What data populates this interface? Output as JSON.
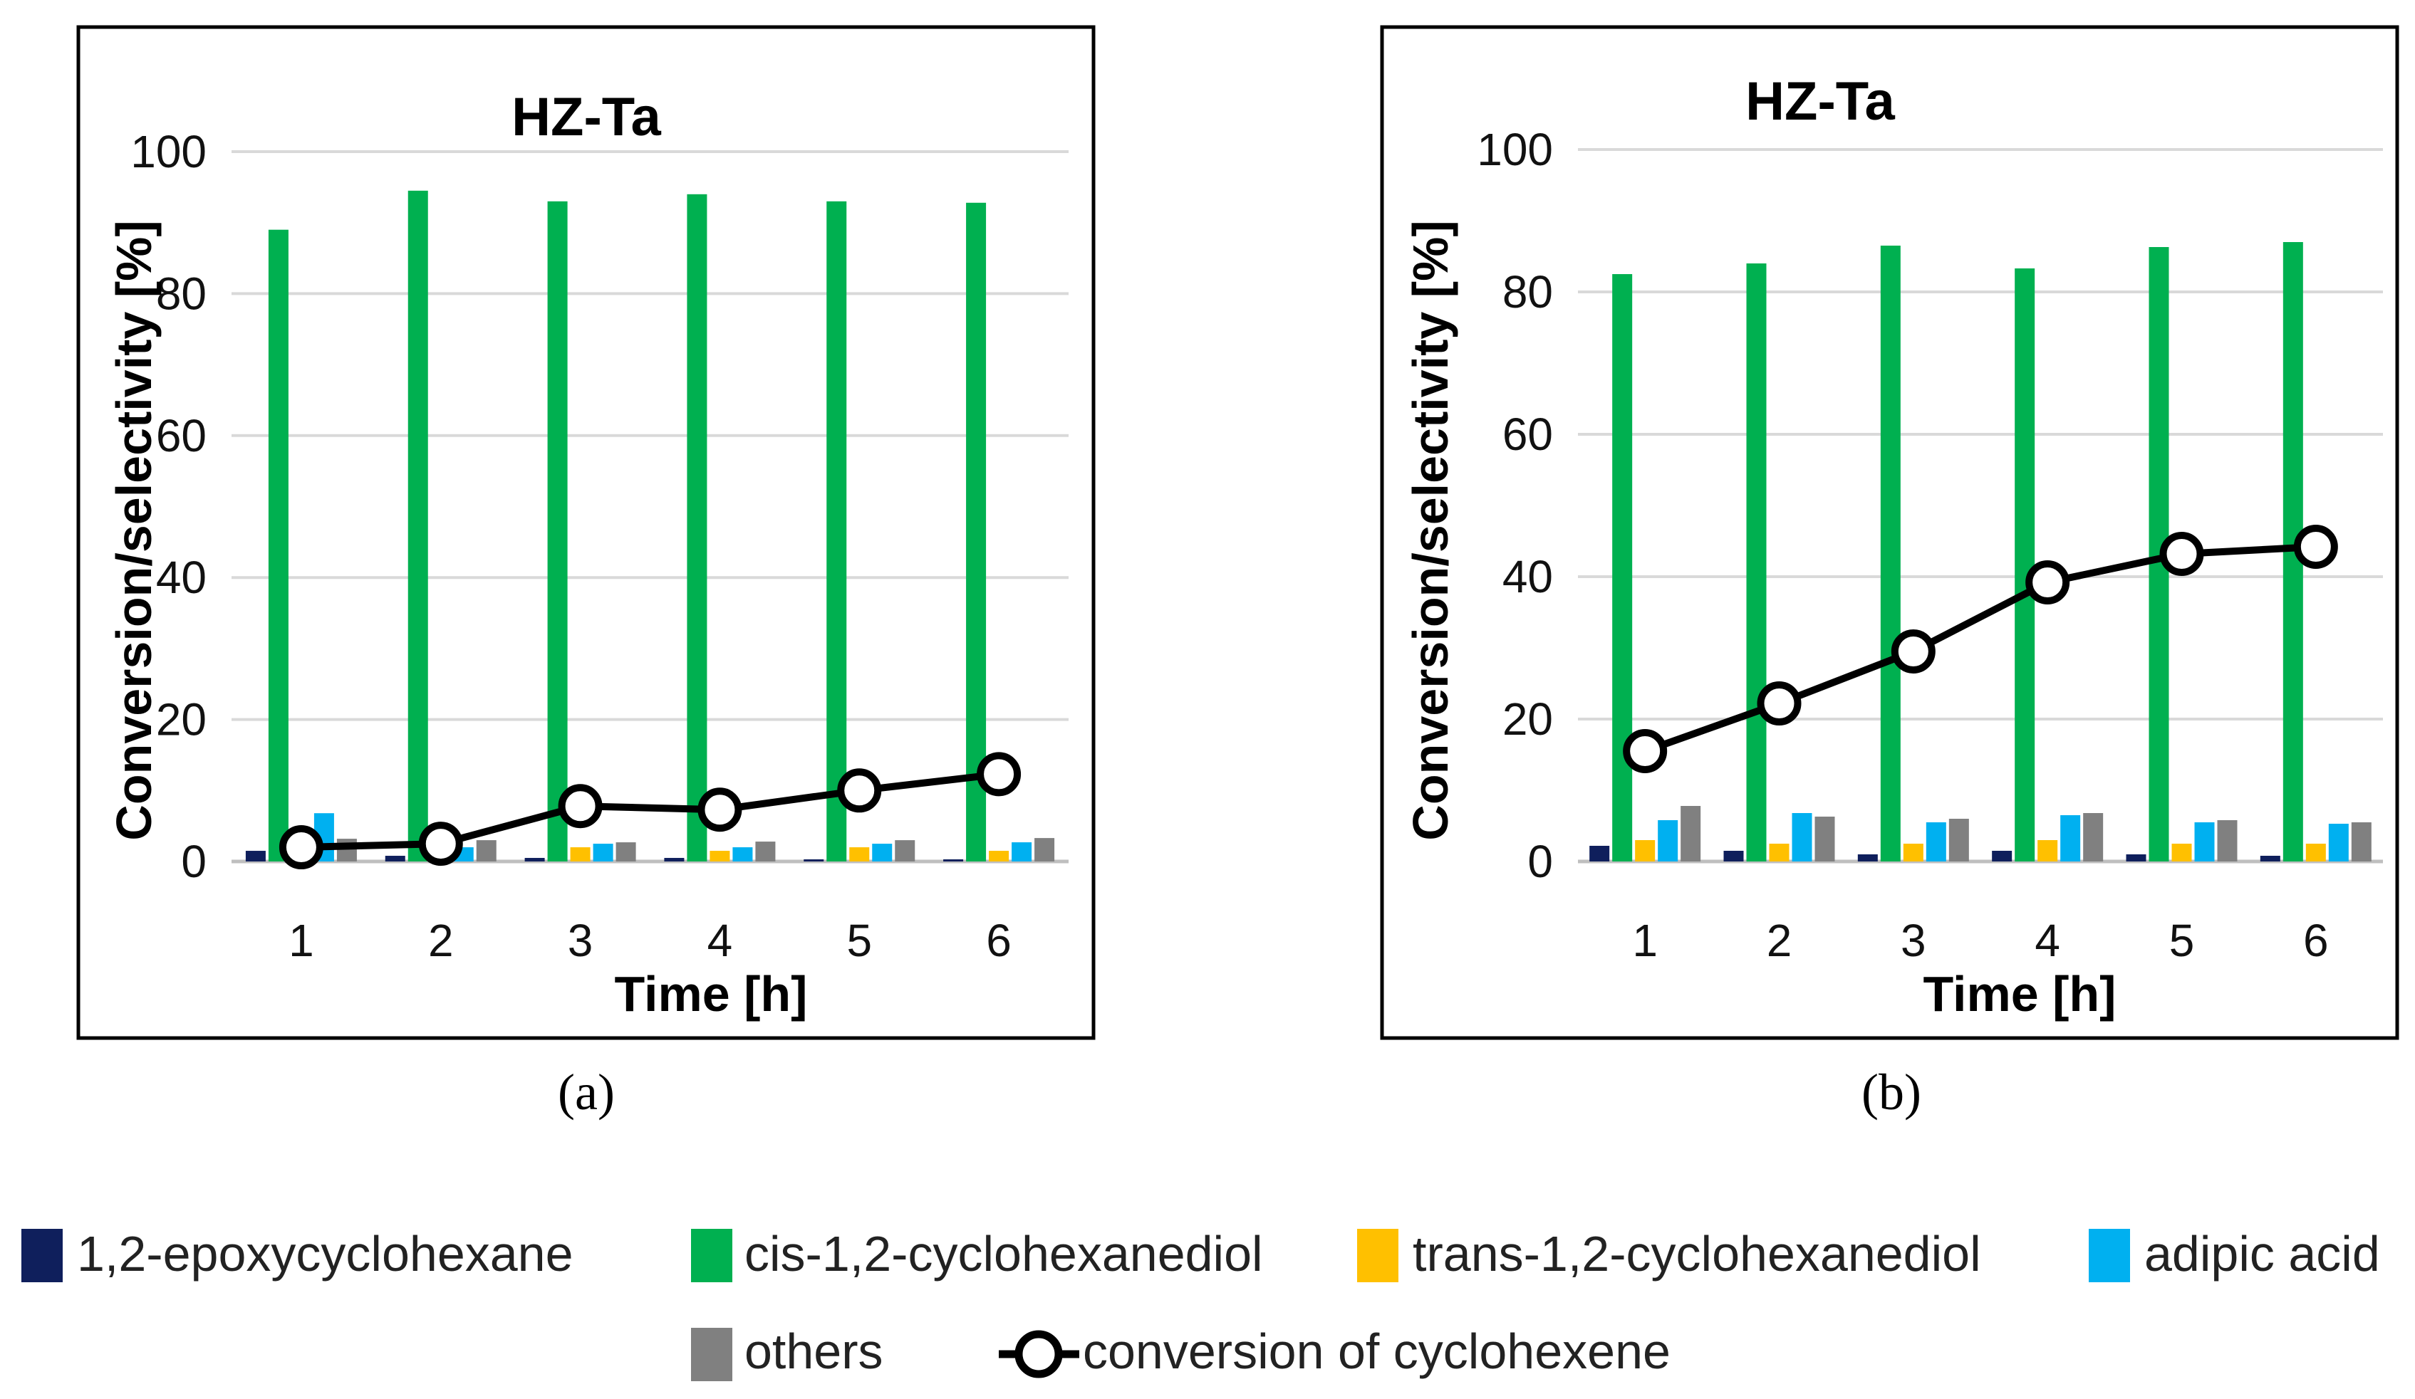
{
  "legend": {
    "items": [
      {
        "label": "1,2-epoxycyclohexane",
        "color": "#0f1f5c",
        "kind": "bar"
      },
      {
        "label": "cis-1,2-cyclohexanediol",
        "color": "#00b050",
        "kind": "bar"
      },
      {
        "label": "trans-1,2-cyclohexanediol",
        "color": "#ffc000",
        "kind": "bar"
      },
      {
        "label": "adipic acid",
        "color": "#00b0f0",
        "kind": "bar"
      },
      {
        "label": "others",
        "color": "#808080",
        "kind": "bar"
      },
      {
        "label": "conversion of cyclohexene",
        "color": "#000000",
        "kind": "line"
      }
    ]
  },
  "chart_data": [
    {
      "type": "bar",
      "panel": "a",
      "caption": "(a)",
      "title": "HZ-Ta",
      "xlabel": "Time [h]",
      "ylabel": "Conversion/selectivity [%]",
      "ylim": [
        0,
        100
      ],
      "yticks": [
        0,
        20,
        40,
        60,
        80,
        100
      ],
      "categories": [
        "1",
        "2",
        "3",
        "4",
        "5",
        "6"
      ],
      "series": [
        {
          "name": "1,2-epoxycyclohexane",
          "color": "#0f1f5c",
          "values": [
            1.5,
            0.8,
            0.5,
            0.5,
            0.3,
            0.3
          ]
        },
        {
          "name": "cis-1,2-cyclohexanediol",
          "color": "#00b050",
          "values": [
            89,
            94.5,
            93,
            94,
            93,
            92.8
          ]
        },
        {
          "name": "trans-1,2-cyclohexanediol",
          "color": "#ffc000",
          "values": [
            1.0,
            1.0,
            2.0,
            1.5,
            2.0,
            1.5
          ]
        },
        {
          "name": "adipic acid",
          "color": "#00b0f0",
          "values": [
            6.8,
            2.0,
            2.5,
            2.0,
            2.5,
            2.7
          ]
        },
        {
          "name": "others",
          "color": "#808080",
          "values": [
            3.2,
            3.0,
            2.7,
            2.8,
            3.0,
            3.3
          ]
        }
      ],
      "line": {
        "name": "conversion of cyclohexene",
        "values": [
          2.0,
          2.5,
          7.8,
          7.3,
          10.0,
          12.3
        ]
      }
    },
    {
      "type": "bar",
      "panel": "b",
      "caption": "(b)",
      "title": "HZ-Ta",
      "xlabel": "Time [h]",
      "ylabel": "Conversion/selectivity [%]",
      "ylim": [
        0,
        100
      ],
      "yticks": [
        0,
        20,
        40,
        60,
        80,
        100
      ],
      "categories": [
        "1",
        "2",
        "3",
        "4",
        "5",
        "6"
      ],
      "series": [
        {
          "name": "1,2-epoxycyclohexane",
          "color": "#0f1f5c",
          "values": [
            2.2,
            1.5,
            1.0,
            1.5,
            1.0,
            0.8
          ]
        },
        {
          "name": "cis-1,2-cyclohexanediol",
          "color": "#00b050",
          "values": [
            82.5,
            84,
            86.5,
            83.3,
            86.3,
            87
          ]
        },
        {
          "name": "trans-1,2-cyclohexanediol",
          "color": "#ffc000",
          "values": [
            3.0,
            2.5,
            2.5,
            3.0,
            2.5,
            2.5
          ]
        },
        {
          "name": "adipic acid",
          "color": "#00b0f0",
          "values": [
            5.8,
            6.8,
            5.5,
            6.5,
            5.5,
            5.3
          ]
        },
        {
          "name": "others",
          "color": "#808080",
          "values": [
            7.8,
            6.3,
            6.0,
            6.8,
            5.8,
            5.5
          ]
        }
      ],
      "line": {
        "name": "conversion of cyclohexene",
        "values": [
          15.5,
          22.2,
          29.5,
          39.2,
          43.2,
          44.2
        ]
      }
    }
  ]
}
